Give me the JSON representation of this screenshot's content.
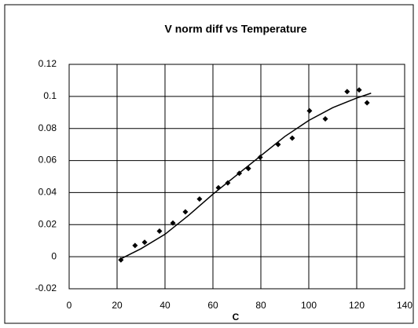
{
  "chart_data": {
    "type": "scatter",
    "title": "V norm diff vs Temperature",
    "x_label": "C",
    "xlim": [
      0,
      140
    ],
    "xticks": [
      0,
      20,
      40,
      60,
      80,
      100,
      120,
      140
    ],
    "ylim": [
      -0.02,
      0.12
    ],
    "yticks": [
      -0.02,
      0,
      0.02,
      0.04,
      0.06,
      0.08,
      0.1,
      0.12
    ],
    "grid": true,
    "series": [
      {
        "type": "scatter",
        "color": "#000000",
        "x": [
          21.6,
          27.5,
          31.5,
          37.7,
          43.3,
          48.5,
          54.4,
          62.3,
          66.2,
          71,
          74.8,
          79.7,
          87.2,
          93.1,
          100.3,
          106.9,
          116,
          121,
          124.3
        ],
        "values": [
          -0.002,
          0.007,
          0.009,
          0.016,
          0.021,
          0.028,
          0.036,
          0.043,
          0.046,
          0.052,
          0.055,
          0.062,
          0.07,
          0.074,
          0.091,
          0.086,
          0.103,
          0.104,
          0.096
        ]
      },
      {
        "type": "line",
        "color": "#000000",
        "x": [
          22,
          30,
          40,
          50,
          60,
          70,
          80,
          90,
          100,
          110,
          120,
          126
        ],
        "values": [
          -0.001,
          0.005,
          0.014,
          0.026,
          0.039,
          0.051,
          0.063,
          0.075,
          0.085,
          0.093,
          0.099,
          0.102
        ]
      }
    ]
  }
}
